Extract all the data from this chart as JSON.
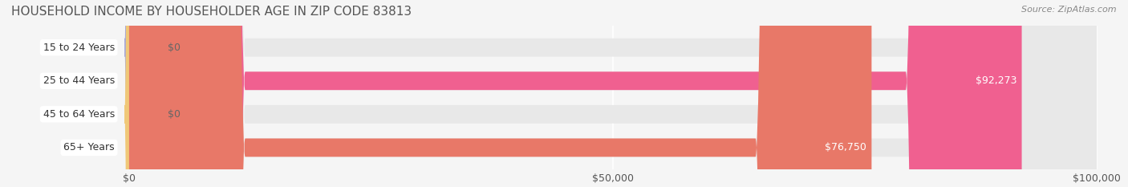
{
  "title": "HOUSEHOLD INCOME BY HOUSEHOLDER AGE IN ZIP CODE 83813",
  "source": "Source: ZipAtlas.com",
  "categories": [
    "15 to 24 Years",
    "25 to 44 Years",
    "45 to 64 Years",
    "65+ Years"
  ],
  "values": [
    0,
    92273,
    0,
    76750
  ],
  "bar_colors": [
    "#a8a8d8",
    "#f06090",
    "#f0c878",
    "#e87868"
  ],
  "label_colors": [
    "#888888",
    "#ffffff",
    "#888888",
    "#ffffff"
  ],
  "value_labels": [
    "$0",
    "$92,273",
    "$0",
    "$76,750"
  ],
  "xlim": [
    0,
    100000
  ],
  "xticks": [
    0,
    50000,
    100000
  ],
  "xtick_labels": [
    "$0",
    "$50,000",
    "$100,000"
  ],
  "background_color": "#f5f5f5",
  "bar_bg_color": "#e8e8e8",
  "label_box_color": "#ffffff",
  "bar_height": 0.55,
  "title_fontsize": 11,
  "source_fontsize": 8,
  "tick_fontsize": 9,
  "category_fontsize": 9,
  "value_fontsize": 9
}
